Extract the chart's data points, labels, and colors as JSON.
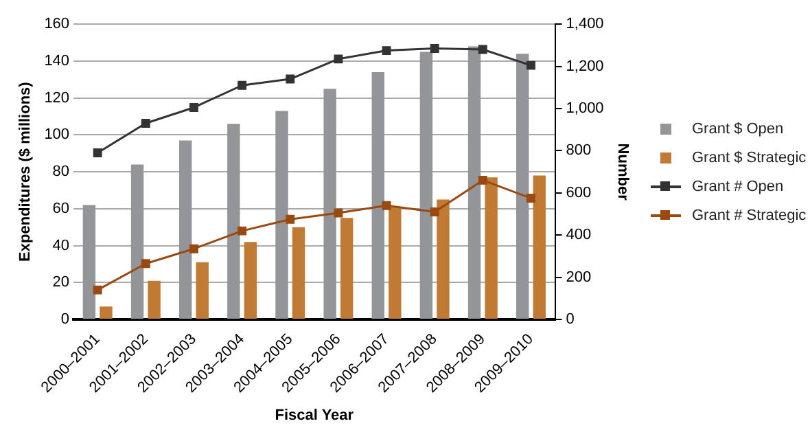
{
  "chart_data": {
    "type": "bar",
    "xlabel": "Fiscal Year",
    "ylabel": "Expenditures ($ millions)",
    "y2label": "Number",
    "categories": [
      "2000–2001",
      "2001–2002",
      "2002–2003",
      "2003–2004",
      "2004–2005",
      "2005–2006",
      "2006–2007",
      "2007–2008",
      "2008–2009",
      "2009–2010"
    ],
    "series": [
      {
        "name": "Grant $ Open",
        "color": "#939598",
        "values": [
          62,
          84,
          97,
          106,
          113,
          125,
          134,
          145,
          148,
          144
        ]
      },
      {
        "name": "Grant $ Strategic",
        "color": "#c07a33",
        "values": [
          7,
          21,
          31,
          42,
          50,
          55,
          61,
          65,
          77,
          78
        ]
      },
      {
        "name": "Grant # Open",
        "type": "line",
        "axis": "y2",
        "color": "#333333",
        "values": [
          790,
          930,
          1005,
          1110,
          1140,
          1235,
          1275,
          1285,
          1280,
          1205
        ]
      },
      {
        "name": "Grant # Strategic",
        "type": "line",
        "axis": "y2",
        "color": "#9a4a10",
        "values": [
          140,
          265,
          335,
          420,
          475,
          505,
          540,
          510,
          660,
          575
        ]
      }
    ],
    "ylim": [
      0,
      160
    ],
    "yticks": [
      0,
      20,
      40,
      60,
      80,
      100,
      120,
      140,
      160
    ],
    "y2lim": [
      0,
      1400
    ],
    "y2ticks": [
      {
        "value": 0,
        "label": "0"
      },
      {
        "value": 200,
        "label": "200"
      },
      {
        "value": 400,
        "label": "400"
      },
      {
        "value": 600,
        "label": "600"
      },
      {
        "value": 800,
        "label": "800"
      },
      {
        "value": 1000,
        "label": "1,000"
      },
      {
        "value": 1200,
        "label": "1,200"
      },
      {
        "value": 1400,
        "label": "1,400"
      }
    ],
    "grid": "y",
    "legend": "right",
    "marker": "square"
  }
}
